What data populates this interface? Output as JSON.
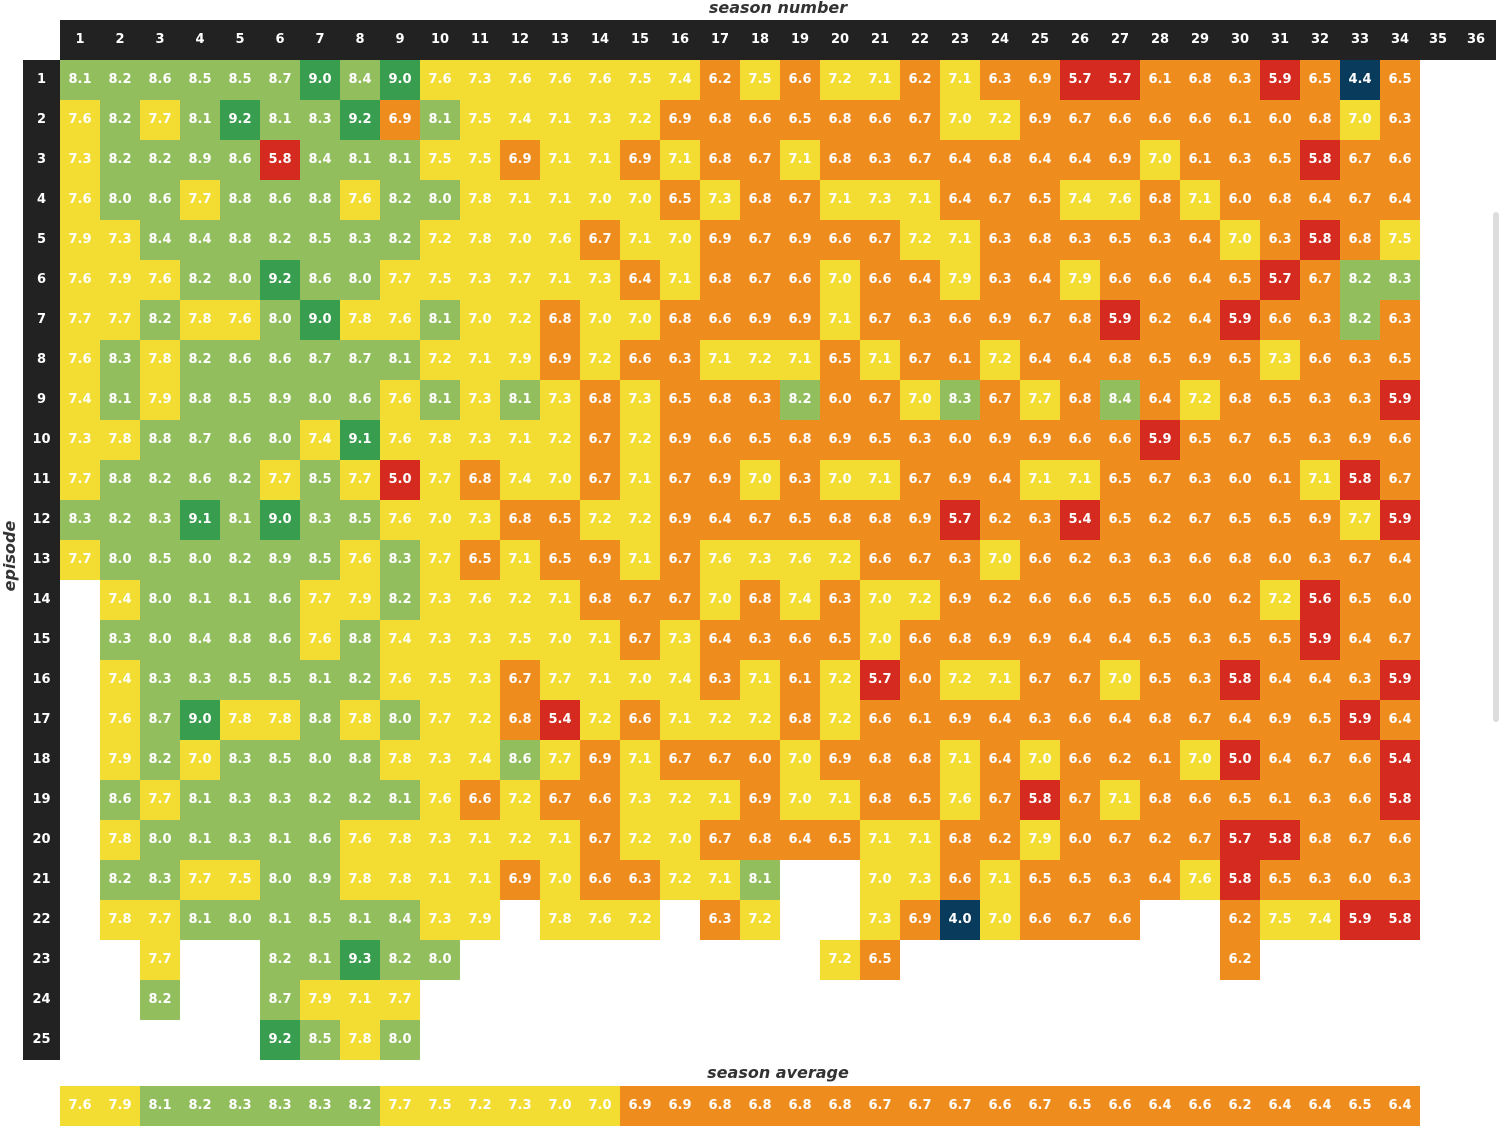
{
  "chart_data": {
    "type": "heatmap",
    "title": "",
    "xlabel": "season number",
    "ylabel": "episode number",
    "summary_label": "season average",
    "seasons": [
      "1",
      "2",
      "3",
      "4",
      "5",
      "6",
      "7",
      "8",
      "9",
      "10",
      "11",
      "12",
      "13",
      "14",
      "15",
      "16",
      "17",
      "18",
      "19",
      "20",
      "21",
      "22",
      "23",
      "24",
      "25",
      "26",
      "27",
      "28",
      "29",
      "30",
      "31",
      "32",
      "33",
      "34",
      "35",
      "36"
    ],
    "episodes": [
      "1",
      "2",
      "3",
      "4",
      "5",
      "6",
      "7",
      "8",
      "9",
      "10",
      "11",
      "12",
      "13",
      "14",
      "15",
      "16",
      "17",
      "18",
      "19",
      "20",
      "21",
      "22",
      "23",
      "24",
      "25"
    ],
    "ratings_by_season": [
      [
        "8.1",
        "7.6",
        "7.3",
        "7.6",
        "7.9",
        "7.6",
        "7.7",
        "7.6",
        "7.4",
        "7.3",
        "7.7",
        "8.3",
        "7.7"
      ],
      [
        "8.2",
        "8.2",
        "8.2",
        "8.0",
        "7.3",
        "7.9",
        "7.7",
        "8.3",
        "8.1",
        "7.8",
        "8.8",
        "8.2",
        "8.0",
        "7.4",
        "8.3",
        "7.4",
        "7.6",
        "7.9",
        "8.6",
        "7.8",
        "8.2",
        "7.8"
      ],
      [
        "8.6",
        "7.7",
        "8.2",
        "8.6",
        "8.4",
        "7.6",
        "8.2",
        "7.8",
        "7.9",
        "8.8",
        "8.2",
        "8.3",
        "8.5",
        "8.0",
        "8.0",
        "8.3",
        "8.7",
        "8.2",
        "7.7",
        "8.0",
        "8.3",
        "7.7",
        "7.7",
        "8.2"
      ],
      [
        "8.5",
        "8.1",
        "8.9",
        "7.7",
        "8.4",
        "8.2",
        "7.8",
        "8.2",
        "8.8",
        "8.7",
        "8.6",
        "9.1",
        "8.0",
        "8.1",
        "8.4",
        "8.3",
        "9.0",
        "7.0",
        "8.1",
        "8.1",
        "7.7",
        "8.1"
      ],
      [
        "8.5",
        "9.2",
        "8.6",
        "8.8",
        "8.8",
        "8.0",
        "7.6",
        "8.6",
        "8.5",
        "8.6",
        "8.2",
        "8.1",
        "8.2",
        "8.1",
        "8.8",
        "8.5",
        "7.8",
        "8.3",
        "8.3",
        "8.3",
        "7.5",
        "8.0"
      ],
      [
        "8.7",
        "8.1",
        "5.8",
        "8.6",
        "8.2",
        "9.2",
        "8.0",
        "8.6",
        "8.9",
        "8.0",
        "7.7",
        "9.0",
        "8.9",
        "8.6",
        "8.6",
        "8.5",
        "7.8",
        "8.5",
        "8.3",
        "8.1",
        "8.0",
        "8.1",
        "8.2",
        "8.7",
        "9.2"
      ],
      [
        "9.0",
        "8.3",
        "8.4",
        "8.8",
        "8.5",
        "8.6",
        "9.0",
        "8.7",
        "8.0",
        "7.4",
        "8.5",
        "8.3",
        "8.5",
        "7.7",
        "7.6",
        "8.1",
        "8.8",
        "8.0",
        "8.2",
        "8.6",
        "8.9",
        "8.5",
        "8.1",
        "7.9",
        "8.5"
      ],
      [
        "8.4",
        "9.2",
        "8.1",
        "7.6",
        "8.3",
        "8.0",
        "7.8",
        "8.7",
        "8.6",
        "9.1",
        "7.7",
        "8.5",
        "7.6",
        "7.9",
        "8.8",
        "8.2",
        "7.8",
        "8.8",
        "8.2",
        "7.6",
        "7.8",
        "8.1",
        "9.3",
        "7.1",
        "7.8"
      ],
      [
        "9.0",
        "6.9",
        "8.1",
        "8.2",
        "8.2",
        "7.7",
        "7.6",
        "8.1",
        "7.6",
        "7.6",
        "5.0",
        "7.6",
        "8.3",
        "8.2",
        "7.4",
        "7.6",
        "8.0",
        "7.8",
        "8.1",
        "7.8",
        "7.8",
        "8.4",
        "8.2",
        "7.7",
        "8.0"
      ],
      [
        "7.6",
        "8.1",
        "7.5",
        "8.0",
        "7.2",
        "7.5",
        "8.1",
        "7.2",
        "8.1",
        "7.8",
        "7.7",
        "7.0",
        "7.7",
        "7.3",
        "7.3",
        "7.5",
        "7.7",
        "7.3",
        "7.6",
        "7.3",
        "7.1",
        "7.3",
        "8.0"
      ],
      [
        "7.3",
        "7.5",
        "7.5",
        "7.8",
        "7.8",
        "7.3",
        "7.0",
        "7.1",
        "7.3",
        "7.3",
        "6.8",
        "7.3",
        "6.5",
        "7.6",
        "7.3",
        "7.3",
        "7.2",
        "7.4",
        "6.6",
        "7.1",
        "7.1",
        "7.9"
      ],
      [
        "7.6",
        "7.4",
        "6.9",
        "7.1",
        "7.0",
        "7.7",
        "7.2",
        "7.9",
        "8.1",
        "7.1",
        "7.4",
        "6.8",
        "7.1",
        "7.2",
        "7.5",
        "6.7",
        "6.8",
        "8.6",
        "7.2",
        "7.2",
        "6.9"
      ],
      [
        "7.6",
        "7.1",
        "7.1",
        "7.1",
        "7.6",
        "7.1",
        "6.8",
        "6.9",
        "7.3",
        "7.2",
        "7.0",
        "6.5",
        "6.5",
        "7.1",
        "7.0",
        "7.7",
        "5.4",
        "7.7",
        "6.7",
        "7.1",
        "7.0",
        "7.8"
      ],
      [
        "7.6",
        "7.3",
        "7.1",
        "7.0",
        "6.7",
        "7.3",
        "7.0",
        "7.2",
        "6.8",
        "6.7",
        "6.7",
        "7.2",
        "6.9",
        "6.8",
        "7.1",
        "7.1",
        "7.2",
        "6.9",
        "6.6",
        "6.7",
        "6.6",
        "7.6"
      ],
      [
        "7.5",
        "7.2",
        "6.9",
        "7.0",
        "7.1",
        "6.4",
        "7.0",
        "6.6",
        "7.3",
        "7.2",
        "7.1",
        "7.2",
        "7.1",
        "6.7",
        "6.7",
        "7.0",
        "6.6",
        "7.1",
        "7.3",
        "7.2",
        "6.3",
        "7.2"
      ],
      [
        "7.4",
        "6.9",
        "7.1",
        "6.5",
        "7.0",
        "7.1",
        "6.8",
        "6.3",
        "6.5",
        "6.9",
        "6.7",
        "6.9",
        "6.7",
        "6.7",
        "7.3",
        "7.4",
        "7.1",
        "6.7",
        "7.2",
        "7.0",
        "7.2"
      ],
      [
        "6.2",
        "6.8",
        "6.8",
        "7.3",
        "6.9",
        "6.8",
        "6.6",
        "7.1",
        "6.8",
        "6.6",
        "6.9",
        "6.4",
        "7.6",
        "7.0",
        "6.4",
        "6.3",
        "7.2",
        "6.7",
        "7.1",
        "6.7",
        "7.1",
        "6.3"
      ],
      [
        "7.5",
        "6.6",
        "6.7",
        "6.8",
        "6.7",
        "6.7",
        "6.9",
        "7.2",
        "6.3",
        "6.5",
        "7.0",
        "6.7",
        "7.3",
        "6.8",
        "6.3",
        "7.1",
        "7.2",
        "6.0",
        "6.9",
        "6.8",
        "8.1",
        "7.2"
      ],
      [
        "6.6",
        "6.5",
        "7.1",
        "6.7",
        "6.9",
        "6.6",
        "6.9",
        "7.1",
        "8.2",
        "6.8",
        "6.3",
        "6.5",
        "7.6",
        "7.4",
        "6.6",
        "6.1",
        "6.8",
        "7.0",
        "7.0",
        "6.4"
      ],
      [
        "7.2",
        "6.8",
        "6.8",
        "7.1",
        "6.6",
        "7.0",
        "7.1",
        "6.5",
        "6.0",
        "6.9",
        "7.0",
        "6.8",
        "7.2",
        "6.3",
        "6.5",
        "7.2",
        "7.2",
        "6.9",
        "7.1",
        "6.5",
        "7.2"
      ],
      [
        "7.1",
        "6.6",
        "6.3",
        "7.3",
        "6.7",
        "6.6",
        "6.7",
        "7.1",
        "6.7",
        "6.5",
        "7.1",
        "6.8",
        "6.6",
        "7.0",
        "7.0",
        "5.7",
        "6.6",
        "6.8",
        "6.8",
        "7.1",
        "7.0",
        "7.3",
        "6.5"
      ],
      [
        "6.2",
        "6.7",
        "6.7",
        "7.1",
        "7.2",
        "6.4",
        "6.3",
        "6.7",
        "7.0",
        "6.3",
        "6.7",
        "6.9",
        "6.7",
        "7.2",
        "6.6",
        "6.0",
        "6.1",
        "6.8",
        "6.5",
        "7.1",
        "7.3",
        "6.9"
      ],
      [
        "7.1",
        "7.0",
        "6.4",
        "6.4",
        "7.1",
        "7.9",
        "6.6",
        "6.1",
        "8.3",
        "6.0",
        "6.9",
        "5.7",
        "6.3",
        "6.9",
        "6.8",
        "7.2",
        "6.9",
        "7.1",
        "7.6",
        "6.8",
        "6.6",
        "4.0"
      ],
      [
        "6.3",
        "7.2",
        "6.8",
        "6.7",
        "6.3",
        "6.3",
        "6.9",
        "7.2",
        "6.7",
        "6.9",
        "6.4",
        "6.2",
        "7.0",
        "6.2",
        "6.9",
        "7.1",
        "6.4",
        "6.4",
        "6.7",
        "6.2",
        "7.1",
        "7.0"
      ],
      [
        "6.9",
        "6.9",
        "6.4",
        "6.5",
        "6.8",
        "6.4",
        "6.7",
        "6.4",
        "7.7",
        "6.9",
        "7.1",
        "6.3",
        "6.6",
        "6.6",
        "6.9",
        "6.7",
        "6.3",
        "7.0",
        "5.8",
        "7.9",
        "6.5",
        "6.6"
      ],
      [
        "5.7",
        "6.7",
        "6.4",
        "7.4",
        "6.3",
        "7.9",
        "6.8",
        "6.4",
        "6.8",
        "6.6",
        "7.1",
        "5.4",
        "6.2",
        "6.6",
        "6.4",
        "6.7",
        "6.6",
        "6.6",
        "6.7",
        "6.0",
        "6.5",
        "6.7"
      ],
      [
        "5.7",
        "6.6",
        "6.9",
        "7.6",
        "6.5",
        "6.6",
        "5.9",
        "6.8",
        "8.4",
        "6.6",
        "6.5",
        "6.5",
        "6.3",
        "6.5",
        "6.4",
        "7.0",
        "6.4",
        "6.2",
        "7.1",
        "6.7",
        "6.3",
        "6.6"
      ],
      [
        "6.1",
        "6.6",
        "7.0",
        "6.8",
        "6.3",
        "6.6",
        "6.2",
        "6.5",
        "6.4",
        "5.9",
        "6.7",
        "6.2",
        "6.3",
        "6.5",
        "6.5",
        "6.5",
        "6.8",
        "6.1",
        "6.8",
        "6.2",
        "6.4"
      ],
      [
        "6.8",
        "6.6",
        "6.1",
        "7.1",
        "6.4",
        "6.4",
        "6.4",
        "6.9",
        "7.2",
        "6.5",
        "6.3",
        "6.7",
        "6.6",
        "6.0",
        "6.3",
        "6.3",
        "6.7",
        "7.0",
        "6.6",
        "6.7",
        "7.6"
      ],
      [
        "6.3",
        "6.1",
        "6.3",
        "6.0",
        "7.0",
        "6.5",
        "5.9",
        "6.5",
        "6.8",
        "6.7",
        "6.0",
        "6.5",
        "6.8",
        "6.2",
        "6.5",
        "5.8",
        "6.4",
        "5.0",
        "6.5",
        "5.7",
        "5.8",
        "6.2",
        "6.2"
      ],
      [
        "5.9",
        "6.0",
        "6.5",
        "6.8",
        "6.3",
        "5.7",
        "6.6",
        "7.3",
        "6.5",
        "6.5",
        "6.1",
        "6.5",
        "6.0",
        "7.2",
        "6.5",
        "6.4",
        "6.9",
        "6.4",
        "6.1",
        "5.8",
        "6.5",
        "7.5"
      ],
      [
        "6.5",
        "6.8",
        "5.8",
        "6.4",
        "5.8",
        "6.7",
        "6.3",
        "6.6",
        "6.3",
        "6.3",
        "7.1",
        "6.9",
        "6.3",
        "5.6",
        "5.9",
        "6.4",
        "6.5",
        "6.7",
        "6.3",
        "6.8",
        "6.3",
        "7.4"
      ],
      [
        "4.4",
        "7.0",
        "6.7",
        "6.7",
        "6.8",
        "8.2",
        "8.2",
        "6.3",
        "6.3",
        "6.9",
        "5.8",
        "7.7",
        "6.7",
        "6.5",
        "6.4",
        "6.3",
        "5.9",
        "6.6",
        "6.6",
        "6.7",
        "6.0",
        "5.9"
      ],
      [
        "6.5",
        "6.3",
        "6.6",
        "6.4",
        "7.5",
        "8.3",
        "6.3",
        "6.5",
        "5.9",
        "6.6",
        "6.7",
        "5.9",
        "6.4",
        "6.0",
        "6.7",
        "5.9",
        "6.4",
        "5.4",
        "5.8",
        "6.6",
        "6.3",
        "5.8"
      ],
      [],
      []
    ],
    "season_averages": [
      "7.6",
      "7.9",
      "8.1",
      "8.2",
      "8.3",
      "8.3",
      "8.3",
      "8.2",
      "7.7",
      "7.5",
      "7.2",
      "7.3",
      "7.0",
      "7.0",
      "6.9",
      "6.9",
      "6.8",
      "6.8",
      "6.8",
      "6.8",
      "6.7",
      "6.7",
      "6.7",
      "6.6",
      "6.7",
      "6.5",
      "6.6",
      "6.4",
      "6.6",
      "6.2",
      "6.4",
      "6.4",
      "6.5",
      "6.4"
    ],
    "missing_cells": [
      [
        12,
        22
      ],
      [
        16,
        22
      ],
      [
        19,
        21
      ],
      [
        19,
        22
      ],
      [
        20,
        21
      ],
      [
        20,
        22
      ],
      [
        28,
        22
      ],
      [
        29,
        22
      ]
    ],
    "color_scale": [
      {
        "min": 0,
        "max": 5.0,
        "color": "#083b5c"
      },
      {
        "min": 5.0,
        "max": 6.0,
        "color": "#d42a20"
      },
      {
        "min": 6.0,
        "max": 7.0,
        "color": "#ef8c1e"
      },
      {
        "min": 7.0,
        "max": 8.0,
        "color": "#f4dd33"
      },
      {
        "min": 8.0,
        "max": 9.0,
        "color": "#92be5e"
      },
      {
        "min": 9.0,
        "max": 10,
        "color": "#389d4f"
      }
    ],
    "header_color": "#222222",
    "grid": false,
    "legend": "none"
  }
}
